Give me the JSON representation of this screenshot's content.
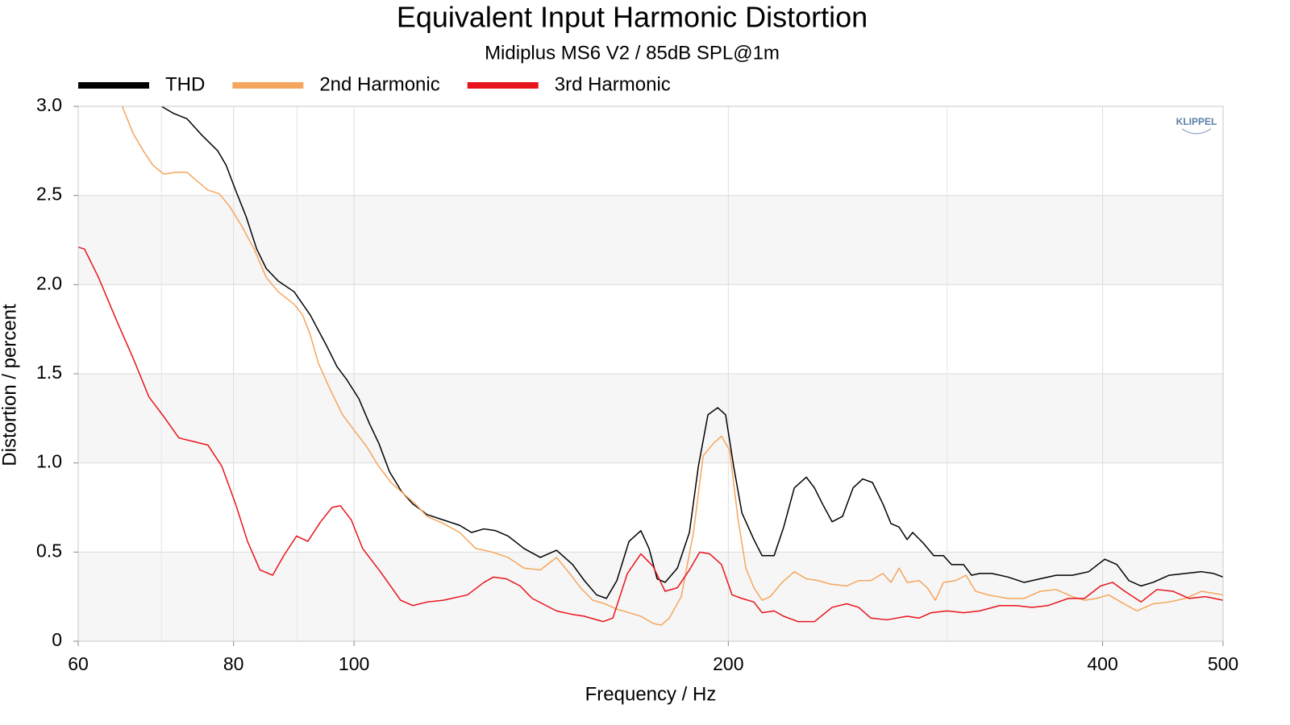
{
  "chart_data": {
    "type": "line",
    "title": "Equivalent Input Harmonic Distortion",
    "subtitle": "Midiplus MS6 V2 / 85dB SPL@1m",
    "x_label": "Frequency / Hz",
    "y_label": "Distortion / percent",
    "logo": "KLIPPEL",
    "xscale": "log",
    "grid": true,
    "legend": "top-left",
    "xlim": [
      60,
      500
    ],
    "xticks": [
      60,
      80,
      100,
      200,
      400,
      500
    ],
    "x_minor_grid": [
      70,
      90,
      300
    ],
    "ylim": [
      0,
      3
    ],
    "yticks": [
      0,
      {
        "value": 0.5,
        "label": "0.5"
      },
      {
        "value": 1,
        "label": "1.0"
      },
      1.5,
      {
        "value": 2,
        "label": "2.0"
      },
      2.5,
      {
        "value": 3,
        "label": "3.0"
      }
    ],
    "series": [
      {
        "name": "THD",
        "color": "#000000",
        "x": [
          70.0,
          71.6,
          73.4,
          75.4,
          77.7,
          78.9,
          80.3,
          81.9,
          83.5,
          85.0,
          86.9,
          89.5,
          92.2,
          95.0,
          96.9,
          98.6,
          100.9,
          102.9,
          104.7,
          106.8,
          109.2,
          111.5,
          114.5,
          118.0,
          121.6,
          124.3,
          127.2,
          130.0,
          133.0,
          137.0,
          141.2,
          145.5,
          149.9,
          153.2,
          156.7,
          159.6,
          162.7,
          166.4,
          170.1,
          172.7,
          175.3,
          177.9,
          182.0,
          186.1,
          189.2,
          192.6,
          196.1,
          199.0,
          202.0,
          205.1,
          209.7,
          212.9,
          217.7,
          221.6,
          226.0,
          231.1,
          234.6,
          238.1,
          242.4,
          247.1,
          252.0,
          256.5,
          261.2,
          266.3,
          270.3,
          274.4,
          278.5,
          281.4,
          287.0,
          292.6,
          297.9,
          302.4,
          309.2,
          313.8,
          318.6,
          325.8,
          335.7,
          345.8,
          356.3,
          367.1,
          378.3,
          389.8,
          401.6,
          410.7,
          420.0,
          429.5,
          439.2,
          452.5,
          466.3,
          480.4,
          491.3,
          500
        ],
        "values": [
          3.0,
          2.96,
          2.93,
          2.84,
          2.75,
          2.67,
          2.53,
          2.38,
          2.2,
          2.09,
          2.02,
          1.96,
          1.83,
          1.66,
          1.54,
          1.47,
          1.36,
          1.22,
          1.11,
          0.95,
          0.84,
          0.77,
          0.71,
          0.68,
          0.65,
          0.61,
          0.63,
          0.62,
          0.59,
          0.52,
          0.47,
          0.51,
          0.43,
          0.34,
          0.26,
          0.24,
          0.34,
          0.56,
          0.62,
          0.52,
          0.35,
          0.33,
          0.41,
          0.61,
          0.98,
          1.27,
          1.31,
          1.27,
          0.98,
          0.72,
          0.57,
          0.48,
          0.48,
          0.64,
          0.86,
          0.92,
          0.86,
          0.77,
          0.67,
          0.7,
          0.86,
          0.91,
          0.89,
          0.77,
          0.66,
          0.64,
          0.57,
          0.61,
          0.55,
          0.48,
          0.48,
          0.43,
          0.43,
          0.37,
          0.38,
          0.38,
          0.36,
          0.33,
          0.35,
          0.37,
          0.37,
          0.39,
          0.46,
          0.43,
          0.34,
          0.31,
          0.33,
          0.37,
          0.38,
          0.39,
          0.38,
          0.36
        ]
      },
      {
        "name": "2nd Harmonic",
        "color": "#f5a55c",
        "x": [
          65.1,
          66.4,
          67.7,
          68.9,
          70.3,
          71.9,
          73.4,
          74.8,
          76.3,
          77.9,
          79.4,
          81.2,
          83.1,
          85.0,
          86.9,
          89.5,
          90.9,
          92.2,
          93.6,
          95.7,
          97.9,
          100.1,
          102.4,
          104.7,
          107.1,
          109.5,
          112.0,
          114.5,
          118.0,
          121.6,
          125.3,
          129.1,
          133.0,
          137.0,
          141.2,
          145.5,
          148.7,
          152.1,
          155.6,
          159.1,
          162.7,
          166.4,
          170.1,
          174.0,
          176.6,
          179.3,
          183.3,
          187.5,
          190.9,
          194.6,
          197.5,
          200.5,
          203.5,
          206.6,
          209.7,
          212.9,
          216.1,
          221.0,
          226.0,
          231.1,
          236.3,
          241.7,
          249.0,
          254.6,
          260.4,
          266.3,
          270.3,
          274.4,
          278.5,
          284.8,
          289.1,
          293.5,
          297.9,
          304.6,
          310.6,
          316.2,
          323.4,
          335.7,
          345.8,
          356.3,
          367.1,
          378.3,
          386.8,
          395.5,
          404.5,
          413.7,
          426.2,
          439.2,
          452.5,
          466.3,
          480.4,
          500
        ],
        "values": [
          3.0,
          2.85,
          2.75,
          2.67,
          2.62,
          2.63,
          2.63,
          2.58,
          2.53,
          2.51,
          2.44,
          2.33,
          2.2,
          2.04,
          1.96,
          1.89,
          1.83,
          1.72,
          1.56,
          1.41,
          1.27,
          1.18,
          1.09,
          0.98,
          0.89,
          0.83,
          0.77,
          0.7,
          0.66,
          0.61,
          0.52,
          0.5,
          0.47,
          0.41,
          0.4,
          0.47,
          0.39,
          0.3,
          0.23,
          0.21,
          0.18,
          0.16,
          0.14,
          0.1,
          0.09,
          0.13,
          0.25,
          0.61,
          1.04,
          1.11,
          1.15,
          1.07,
          0.7,
          0.41,
          0.3,
          0.23,
          0.25,
          0.33,
          0.39,
          0.35,
          0.34,
          0.32,
          0.31,
          0.34,
          0.34,
          0.38,
          0.33,
          0.41,
          0.33,
          0.34,
          0.3,
          0.23,
          0.33,
          0.34,
          0.37,
          0.28,
          0.26,
          0.24,
          0.24,
          0.28,
          0.29,
          0.25,
          0.23,
          0.24,
          0.26,
          0.22,
          0.17,
          0.21,
          0.22,
          0.24,
          0.28,
          0.26
        ]
      },
      {
        "name": "3rd Harmonic",
        "color": "#e8141c",
        "x": [
          60,
          60.7,
          62.3,
          64.5,
          66.4,
          68.4,
          70.3,
          72.3,
          74.3,
          76.3,
          78.3,
          80.3,
          82.1,
          84.0,
          86.0,
          87.8,
          89.9,
          91.8,
          94.0,
          96.0,
          97.5,
          99.5,
          101.6,
          105.0,
          109.0,
          111.5,
          114.5,
          118.0,
          123.4,
          127.2,
          129.5,
          132.6,
          136.0,
          139.1,
          145.5,
          149.9,
          153.2,
          158.6,
          161.5,
          165.9,
          170.1,
          174.0,
          177.9,
          182.0,
          186.1,
          189.7,
          193.2,
          197.5,
          201.4,
          205.1,
          209.7,
          212.9,
          217.7,
          221.6,
          227.6,
          234.6,
          242.4,
          249.0,
          254.6,
          260.4,
          268.3,
          278.5,
          284.8,
          291.2,
          300.0,
          309.2,
          318.6,
          330.6,
          340.7,
          351.0,
          361.6,
          375.4,
          386.8,
          398.5,
          407.5,
          416.8,
          429.5,
          442.4,
          455.8,
          469.6,
          483.9,
          500
        ],
        "values": [
          2.21,
          2.2,
          2.04,
          1.79,
          1.59,
          1.37,
          1.26,
          1.14,
          1.12,
          1.1,
          0.98,
          0.77,
          0.56,
          0.4,
          0.37,
          0.48,
          0.59,
          0.56,
          0.67,
          0.75,
          0.76,
          0.68,
          0.52,
          0.39,
          0.23,
          0.2,
          0.22,
          0.23,
          0.26,
          0.33,
          0.36,
          0.35,
          0.31,
          0.24,
          0.17,
          0.15,
          0.14,
          0.11,
          0.13,
          0.38,
          0.49,
          0.42,
          0.28,
          0.3,
          0.4,
          0.5,
          0.49,
          0.43,
          0.26,
          0.24,
          0.22,
          0.16,
          0.17,
          0.14,
          0.11,
          0.11,
          0.19,
          0.21,
          0.19,
          0.13,
          0.12,
          0.14,
          0.13,
          0.16,
          0.17,
          0.16,
          0.17,
          0.2,
          0.2,
          0.19,
          0.2,
          0.24,
          0.24,
          0.31,
          0.33,
          0.28,
          0.22,
          0.29,
          0.28,
          0.24,
          0.25,
          0.23
        ]
      }
    ]
  }
}
